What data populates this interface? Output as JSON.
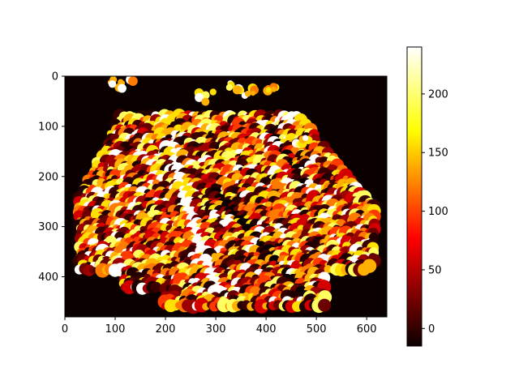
{
  "chart_data": {
    "type": "heatmap",
    "title": "",
    "xlabel": "",
    "ylabel": "",
    "colormap": "hot",
    "xlim": [
      0,
      640
    ],
    "ylim": [
      480,
      0
    ],
    "x_ticks": [
      0,
      100,
      200,
      300,
      400,
      500,
      600
    ],
    "y_ticks": [
      0,
      100,
      200,
      300,
      400
    ],
    "colorbar": {
      "range": [
        -15,
        240
      ],
      "ticks": [
        0,
        50,
        100,
        150,
        200
      ]
    },
    "image_description_values": {
      "background_value": -15,
      "max_value": 240
    }
  },
  "colors": {
    "axis": "#000000",
    "background": "#ffffff"
  }
}
